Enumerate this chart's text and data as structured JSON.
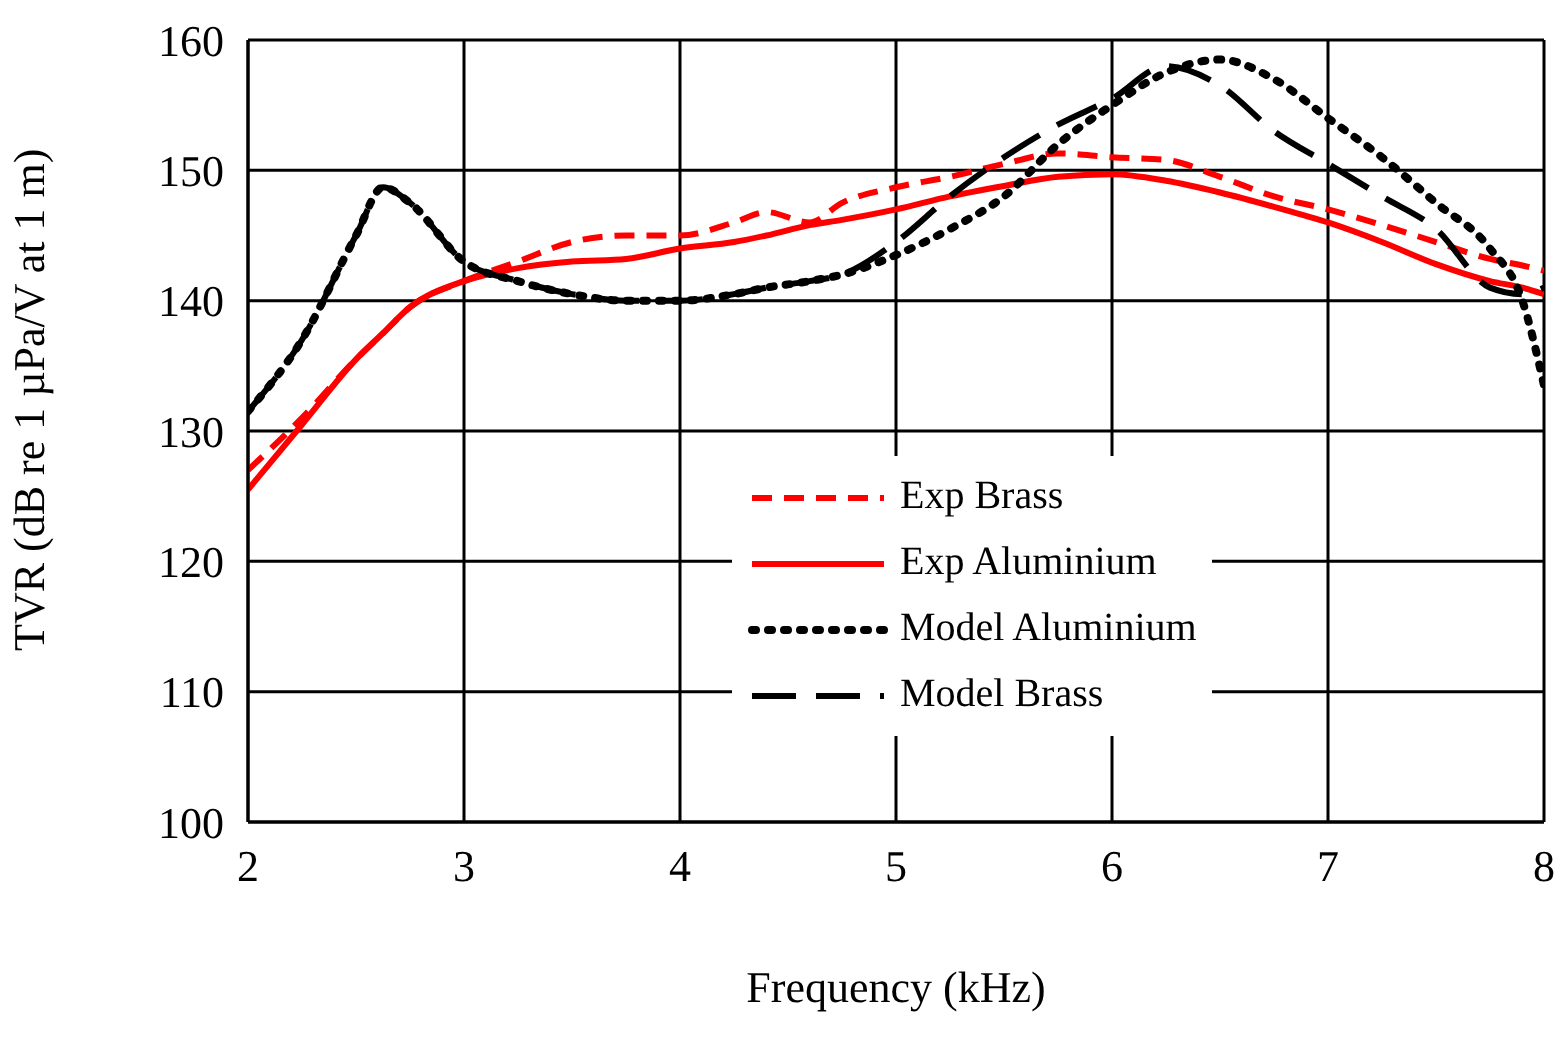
{
  "chart_data": {
    "type": "line",
    "xlabel": "Frequency (kHz)",
    "ylabel": "TVR (dB re 1 µPa/V at 1 m)",
    "xlim": [
      2,
      8
    ],
    "xticks": [
      2,
      3,
      4,
      5,
      6,
      7,
      8
    ],
    "ylim": [
      100,
      160
    ],
    "yticks": [
      100,
      110,
      120,
      130,
      140,
      150,
      160
    ],
    "grid": true,
    "legend": "bottom",
    "marker": "none",
    "x": [
      2,
      2.25,
      2.5,
      2.625,
      2.75,
      3,
      3.25,
      3.5,
      3.75,
      4,
      4.25,
      4.4,
      4.6,
      4.75,
      5,
      5.25,
      5.5,
      5.75,
      6,
      6.25,
      6.5,
      6.75,
      7,
      7.25,
      7.5,
      7.75,
      7.9,
      8
    ],
    "series": [
      {
        "name": "Exp Brass",
        "color": "#ff0000",
        "line_style": "dashed",
        "values": [
          127,
          131,
          135.5,
          137.5,
          139.5,
          141.5,
          143,
          144.5,
          145,
          145,
          146,
          146.8,
          146,
          147.5,
          148.7,
          149.5,
          150.5,
          151.3,
          151,
          150.8,
          149.5,
          148,
          147,
          145.8,
          144.5,
          143.2,
          142.7,
          142.3
        ]
      },
      {
        "name": "Exp Aluminium",
        "color": "#ff0000",
        "line_style": "solid",
        "values": [
          125.5,
          130.5,
          135.5,
          137.5,
          139.5,
          141.5,
          142.5,
          143,
          143.2,
          144,
          144.5,
          145,
          145.8,
          146.2,
          147,
          148,
          148.8,
          149.5,
          149.7,
          149.2,
          148.3,
          147.2,
          146,
          144.5,
          142.8,
          141.5,
          141,
          140.5
        ]
      },
      {
        "name": "Model Aluminium",
        "color": "#000000",
        "line_style": "dotted",
        "values": [
          131.5,
          137,
          145,
          148.7,
          147.5,
          143,
          141.5,
          140.5,
          140,
          140,
          140.5,
          141,
          141.5,
          142,
          143.5,
          145.5,
          148,
          152,
          155,
          157.5,
          158.5,
          157,
          154,
          151,
          147.5,
          144,
          140,
          133.5
        ]
      },
      {
        "name": "Model Brass",
        "color": "#000000",
        "line_style": "dashed",
        "values": [
          131.5,
          137,
          145,
          148.7,
          147.5,
          143,
          141.5,
          140.5,
          140,
          140,
          140.5,
          141,
          141.5,
          142,
          144.5,
          148,
          151,
          153.5,
          155.5,
          158,
          156.5,
          153,
          150.5,
          148,
          145.5,
          141,
          140.5,
          141
        ]
      }
    ]
  }
}
